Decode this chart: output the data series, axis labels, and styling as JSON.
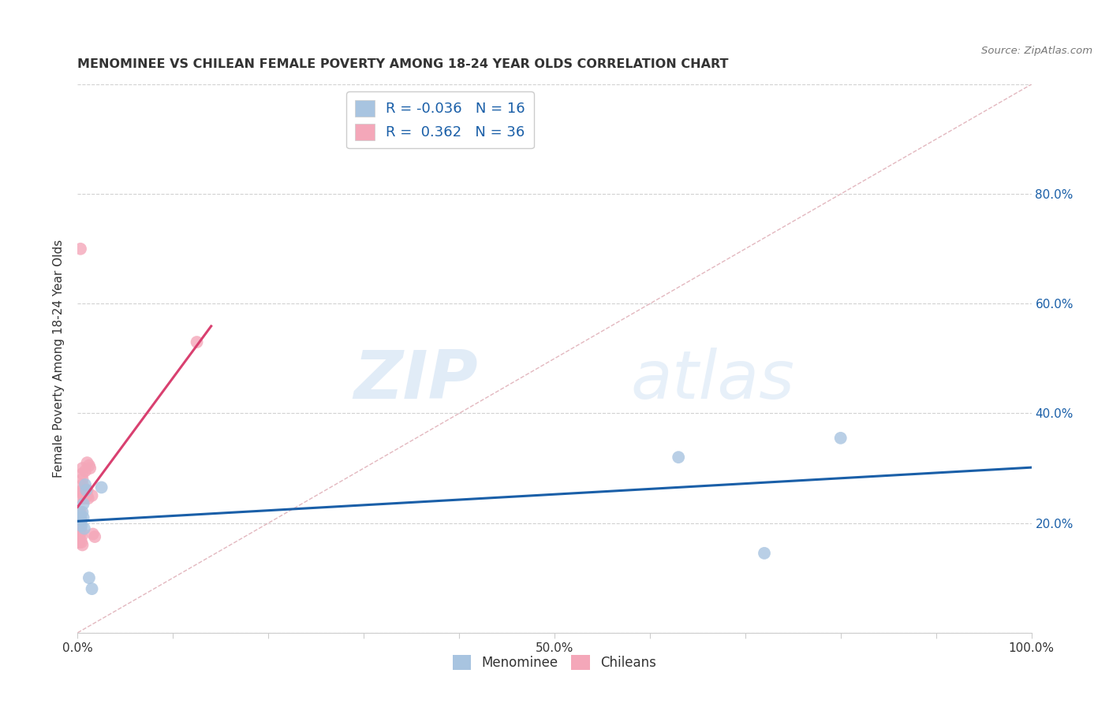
{
  "title": "MENOMINEE VS CHILEAN FEMALE POVERTY AMONG 18-24 YEAR OLDS CORRELATION CHART",
  "source": "Source: ZipAtlas.com",
  "ylabel": "Female Poverty Among 18-24 Year Olds",
  "xlim": [
    0.0,
    1.0
  ],
  "ylim": [
    0.0,
    1.0
  ],
  "xtick_positions": [
    0.0,
    0.1,
    0.2,
    0.3,
    0.4,
    0.5,
    0.6,
    0.7,
    0.8,
    0.9,
    1.0
  ],
  "xticklabels": [
    "0.0%",
    "",
    "",
    "",
    "",
    "50.0%",
    "",
    "",
    "",
    "",
    "100.0%"
  ],
  "ytick_positions": [
    0.0,
    0.2,
    0.4,
    0.6,
    0.8,
    1.0
  ],
  "right_yticklabels": [
    "",
    "20.0%",
    "40.0%",
    "60.0%",
    "80.0%",
    ""
  ],
  "menominee_x": [
    0.003,
    0.003,
    0.004,
    0.004,
    0.005,
    0.006,
    0.006,
    0.007,
    0.008,
    0.009,
    0.012,
    0.015,
    0.025,
    0.63,
    0.72,
    0.8
  ],
  "menominee_y": [
    0.215,
    0.21,
    0.205,
    0.195,
    0.22,
    0.235,
    0.21,
    0.19,
    0.27,
    0.26,
    0.1,
    0.08,
    0.265,
    0.32,
    0.145,
    0.355
  ],
  "chilean_x": [
    0.001,
    0.001,
    0.002,
    0.002,
    0.002,
    0.003,
    0.003,
    0.003,
    0.003,
    0.004,
    0.004,
    0.004,
    0.004,
    0.004,
    0.005,
    0.005,
    0.005,
    0.005,
    0.005,
    0.005,
    0.006,
    0.007,
    0.007,
    0.008,
    0.009,
    0.01,
    0.01,
    0.01,
    0.011,
    0.012,
    0.013,
    0.015,
    0.016,
    0.018,
    0.003,
    0.125
  ],
  "chilean_y": [
    0.175,
    0.165,
    0.185,
    0.175,
    0.165,
    0.22,
    0.21,
    0.2,
    0.19,
    0.255,
    0.245,
    0.185,
    0.175,
    0.165,
    0.3,
    0.29,
    0.28,
    0.27,
    0.26,
    0.16,
    0.255,
    0.25,
    0.245,
    0.295,
    0.26,
    0.31,
    0.26,
    0.25,
    0.245,
    0.305,
    0.3,
    0.25,
    0.18,
    0.175,
    0.7,
    0.53
  ],
  "menominee_R": -0.036,
  "menominee_N": 16,
  "chilean_R": 0.362,
  "chilean_N": 36,
  "menominee_color": "#a8c4e0",
  "chilean_color": "#f4a7b9",
  "menominee_line_color": "#1a5fa8",
  "chilean_line_color": "#d94070",
  "diagonal_color": "#e0b0b8",
  "watermark_zip": "ZIP",
  "watermark_atlas": "atlas",
  "bg_color": "#ffffff",
  "marker_size": 130,
  "grid_color": "#cccccc",
  "right_label_color": "#1a5fa8",
  "text_color": "#333333"
}
